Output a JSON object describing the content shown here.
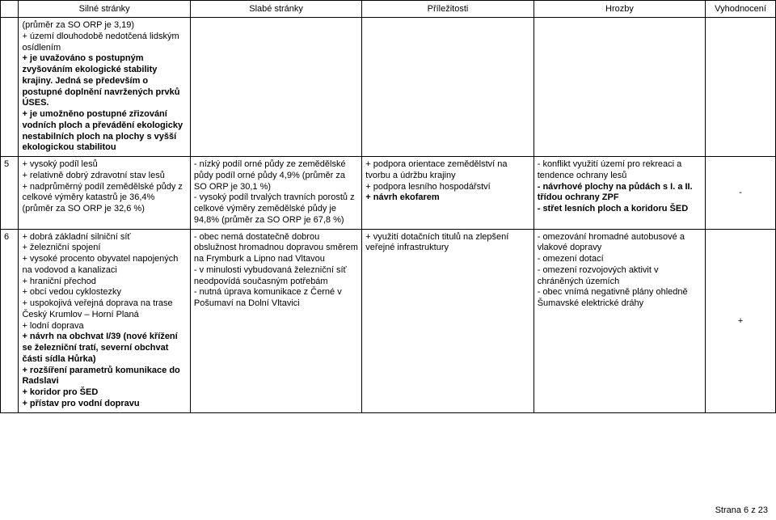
{
  "headers": {
    "num": "",
    "strong": "Silné stránky",
    "weak": "Slabé stránky",
    "opp": "Příležitosti",
    "threat": "Hrozby",
    "eval": "Vyhodnocení"
  },
  "rows": [
    {
      "num": "",
      "strong_plain_top": "(průměr za SO ORP je 3,19)\n+ území dlouhodobě nedotčená lidským osídlením",
      "strong_bold_1": "+ je uvažováno s postupným zvyšováním ekologické stability krajiny. Jedná se především o postupné doplnění navržených prvků ÚSES.",
      "strong_bold_2": "+ je umožněno postupné zřizování vodních ploch a převádění ekologicky nestabilních ploch na plochy s vyšší ekologickou stabilitou",
      "weak": "",
      "opp": "",
      "threat": "",
      "eval": ""
    },
    {
      "num": "5",
      "strong": "+ vysoký podíl lesů\n+ relativně dobrý zdravotní stav lesů\n+ nadprůměrný podíl zemědělské půdy z celkové výměry katastrů je 36,4%\n(průměr za SO ORP je 32,6 %)",
      "weak": "- nízký podíl orné půdy ze zemědělské půdy podíl orné půdy 4,9% (průměr za SO ORP je 30,1 %)\n- vysoký podíl trvalých travních porostů z celkové výměry zemědělské půdy je 94,8% (průměr za SO ORP je 67,8 %)",
      "opp_plain": "+ podpora orientace zemědělství na tvorbu a údržbu krajiny\n+ podpora lesního hospodářství",
      "opp_bold": "+ návrh ekofarem",
      "threat_plain": "- konflikt využití území pro rekreaci a tendence ochrany lesů",
      "threat_bold": "- návrhové plochy na půdách s I. a II. třídou ochrany ZPF\n- střet lesních ploch a koridoru ŠED",
      "eval": "-"
    },
    {
      "num": "6",
      "strong_plain": "+ dobrá základní silniční síť\n+ železniční spojení\n+ vysoké procento obyvatel napojených na vodovod a kanalizaci\n+ hraniční přechod\n+ obcí vedou cyklostezky\n+ uspokojivá veřejná doprava na trase Český Krumlov – Horní Planá\n+ lodní doprava",
      "strong_bold": "+ návrh na obchvat I/39 (nové křížení se železniční tratí, severní obchvat části sídla Hůrka)\n+ rozšíření parametrů komunikace do Radslavi\n+ koridor pro ŠED\n+ přístav pro vodní dopravu",
      "weak": "- obec nemá dostatečně dobrou obslužnost hromadnou dopravou směrem na Frymburk a Lipno nad Vltavou\n- v minulosti vybudovaná železniční síť neodpovídá současným potřebám\n- nutná úprava komunikace z Černé v Pošumaví na Dolní Vltavici",
      "opp": "+ využití dotačních titulů na zlepšení veřejné infrastruktury",
      "threat": "- omezování hromadné autobusové a vlakové dopravy\n- omezení dotací\n- omezení rozvojových aktivit v chráněných územích\n- obec vnímá negativně plány ohledně Šumavské elektrické dráhy",
      "eval": "+"
    }
  ],
  "page_label": "Strana 6 z 23"
}
